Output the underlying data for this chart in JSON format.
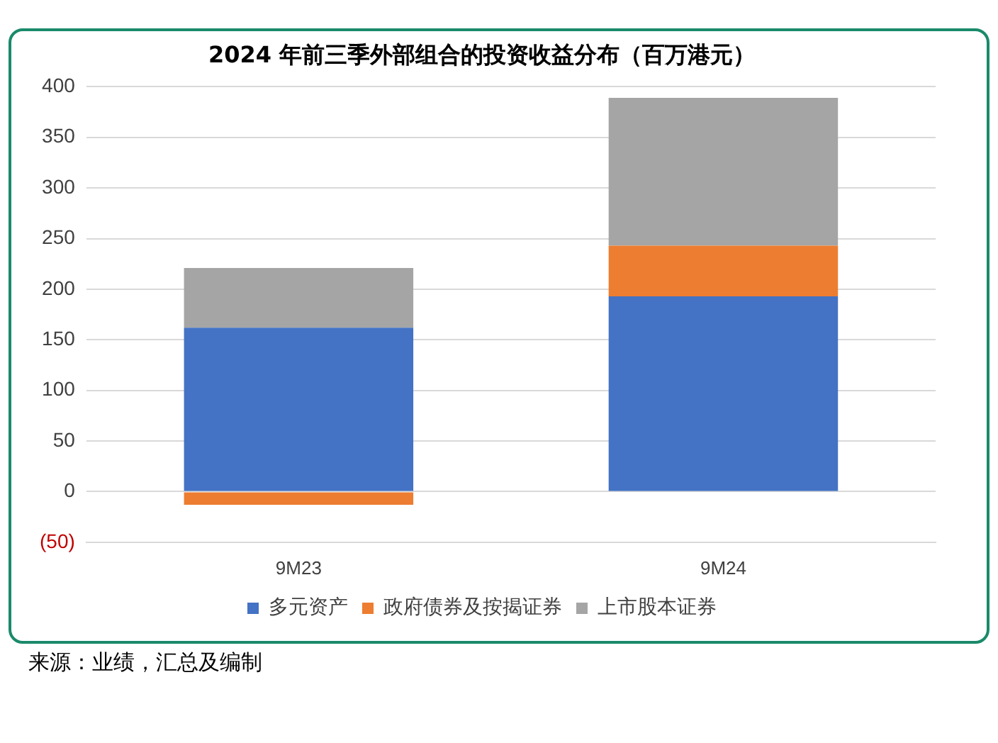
{
  "chart_data": {
    "type": "bar",
    "title": "2024 年前三季外部组合的投资收益分布（百万港元）",
    "categories": [
      "9M23",
      "9M24"
    ],
    "stacked": true,
    "series": [
      {
        "name": "多元资产",
        "color": "#4472c4",
        "values": [
          162,
          193
        ]
      },
      {
        "name": "政府债券及按揭证券",
        "color": "#ed7d31",
        "values": [
          -13,
          50
        ]
      },
      {
        "name": "上市股本证券",
        "color": "#a5a5a5",
        "values": [
          59,
          146
        ]
      }
    ],
    "ylim": [
      -50,
      400
    ],
    "yticks": [
      {
        "value": -50,
        "label": "(50)"
      },
      0,
      50,
      100,
      150,
      200,
      250,
      300,
      350,
      400
    ],
    "grid": "y",
    "legend": "bottom",
    "annotations": [
      "来源：业绩，汇总及编制"
    ]
  }
}
